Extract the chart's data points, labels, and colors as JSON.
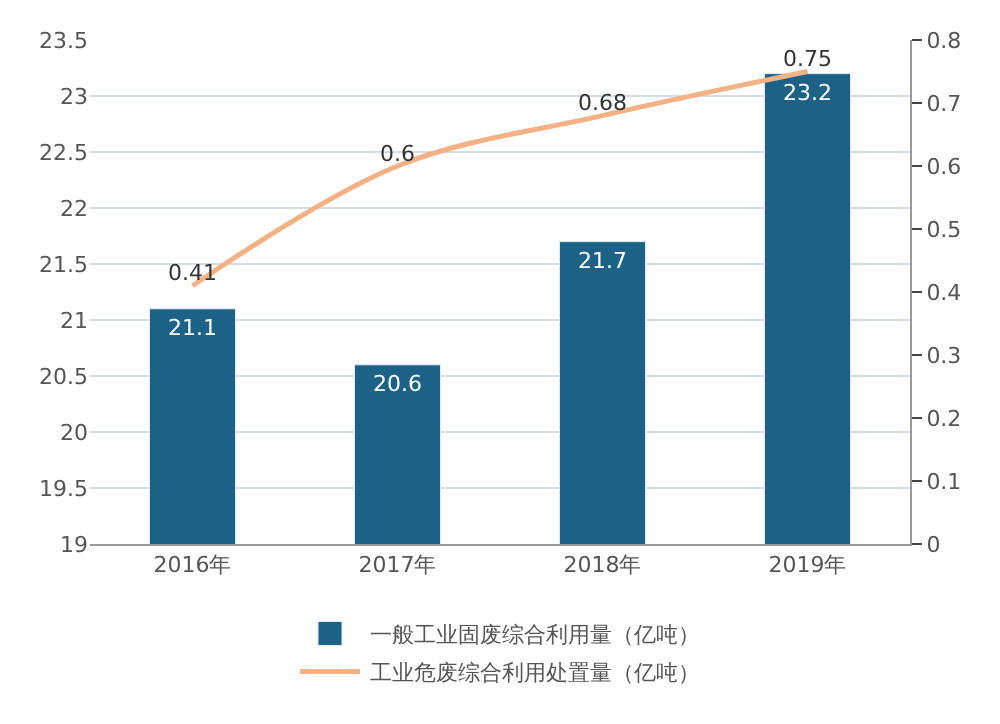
{
  "chart_data": {
    "type": "bar",
    "categories": [
      "2016年",
      "2017年",
      "2018年",
      "2019年"
    ],
    "series": [
      {
        "name": "一般工业固废综合利用量（亿吨）",
        "color": "#1c6287",
        "values": [
          21.1,
          20.6,
          21.7,
          23.2
        ]
      },
      {
        "name": "工业危废综合利用处置量（亿吨）",
        "type": "line",
        "axis": "y2",
        "color": "#f4b183",
        "values": [
          0.41,
          0.6,
          0.68,
          0.75
        ]
      }
    ],
    "ylim": [
      19,
      23.5
    ],
    "yticks": [
      19,
      19.5,
      20,
      20.5,
      21,
      21.5,
      22,
      22.5,
      23,
      23.5
    ],
    "y2lim": [
      0,
      0.8
    ],
    "y2ticks": [
      0,
      0.1,
      0.2,
      0.3,
      0.4,
      0.5,
      0.6,
      0.7,
      0.8
    ],
    "data_labels": true,
    "grid": "y",
    "legend": "bottom",
    "marker": "none"
  }
}
